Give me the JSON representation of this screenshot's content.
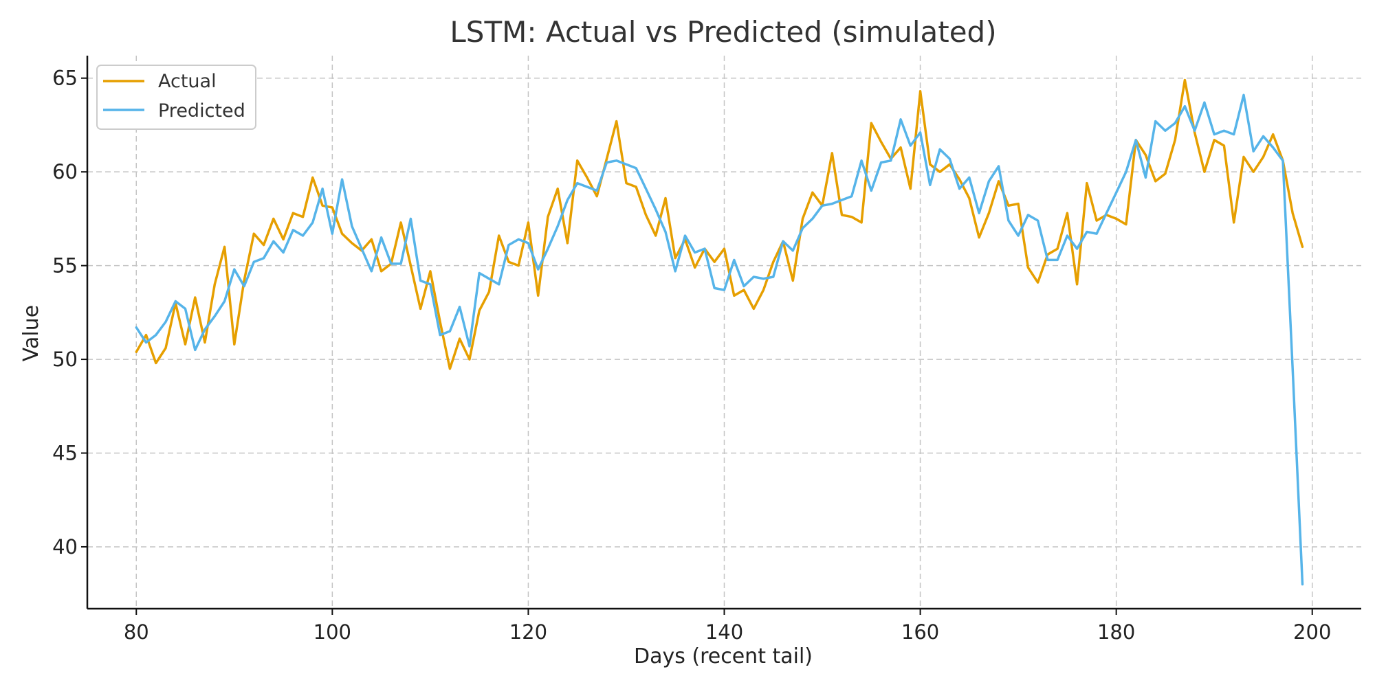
{
  "chart_data": {
    "type": "line",
    "title": "LSTM: Actual vs Predicted (simulated)",
    "xlabel": "Days (recent tail)",
    "ylabel": "Value",
    "xlim": [
      75,
      205
    ],
    "ylim": [
      36.7,
      66.2
    ],
    "xticks": [
      80,
      100,
      120,
      140,
      160,
      180,
      200
    ],
    "yticks": [
      40,
      45,
      50,
      55,
      60,
      65
    ],
    "grid": true,
    "legend_position": "top-left",
    "x_start": 80,
    "series": [
      {
        "name": "Actual",
        "color": "#E69F00",
        "values": [
          50.4,
          51.3,
          49.8,
          50.6,
          53.0,
          50.8,
          53.3,
          50.9,
          54.0,
          56.0,
          50.8,
          54.2,
          56.7,
          56.1,
          57.5,
          56.4,
          57.8,
          57.6,
          59.7,
          58.2,
          58.1,
          56.7,
          56.2,
          55.8,
          56.4,
          54.7,
          55.1,
          57.3,
          55.0,
          52.7,
          54.7,
          52.0,
          49.5,
          51.1,
          50.0,
          52.6,
          53.6,
          56.6,
          55.2,
          55.0,
          57.3,
          53.4,
          57.6,
          59.1,
          56.2,
          60.6,
          59.7,
          58.7,
          60.7,
          62.7,
          59.4,
          59.2,
          57.7,
          56.6,
          58.6,
          55.4,
          56.4,
          54.9,
          55.9,
          55.2,
          55.9,
          53.4,
          53.7,
          52.7,
          53.7,
          55.2,
          56.3,
          54.2,
          57.5,
          58.9,
          58.2,
          61.0,
          57.7,
          57.6,
          57.3,
          62.6,
          61.6,
          60.7,
          61.3,
          59.1,
          64.3,
          60.4,
          60.0,
          60.4,
          59.6,
          58.6,
          56.5,
          57.8,
          59.5,
          58.2,
          58.3,
          54.9,
          54.1,
          55.6,
          55.9,
          57.8,
          54.0,
          59.4,
          57.4,
          57.7,
          57.5,
          57.2,
          61.7,
          60.9,
          59.5,
          59.9,
          61.7,
          64.9,
          62.1,
          60.0,
          61.7,
          61.4,
          57.3,
          60.8,
          60.0,
          60.8,
          62.0,
          60.6,
          57.8,
          56.0
        ]
      },
      {
        "name": "Predicted",
        "color": "#56B4E9",
        "values": [
          51.7,
          50.9,
          51.3,
          52.0,
          53.1,
          52.7,
          50.5,
          51.6,
          52.3,
          53.1,
          54.8,
          53.9,
          55.2,
          55.4,
          56.3,
          55.7,
          56.9,
          56.6,
          57.3,
          59.1,
          56.7,
          59.6,
          57.1,
          55.9,
          54.7,
          56.5,
          55.1,
          55.1,
          57.5,
          54.2,
          54.0,
          51.3,
          51.5,
          52.8,
          50.7,
          54.6,
          54.3,
          54.0,
          56.1,
          56.4,
          56.2,
          54.8,
          55.9,
          57.1,
          58.5,
          59.4,
          59.2,
          59.0,
          60.5,
          60.6,
          60.4,
          60.2,
          59.1,
          58.0,
          56.8,
          54.7,
          56.6,
          55.7,
          55.9,
          53.8,
          53.7,
          55.3,
          53.9,
          54.4,
          54.3,
          54.4,
          56.3,
          55.8,
          57.0,
          57.5,
          58.2,
          58.3,
          58.5,
          58.7,
          60.6,
          59.0,
          60.5,
          60.6,
          62.8,
          61.4,
          62.1,
          59.3,
          61.2,
          60.7,
          59.1,
          59.7,
          57.8,
          59.5,
          60.3,
          57.4,
          56.6,
          57.7,
          57.4,
          55.3,
          55.3,
          56.6,
          55.9,
          56.8,
          56.7,
          57.8,
          58.9,
          60.0,
          61.7,
          59.7,
          62.7,
          62.2,
          62.6,
          63.5,
          62.2,
          63.7,
          62.0,
          62.2,
          62.0,
          64.1,
          61.1,
          61.9,
          61.3,
          60.6,
          49.5,
          38.0
        ]
      }
    ]
  }
}
